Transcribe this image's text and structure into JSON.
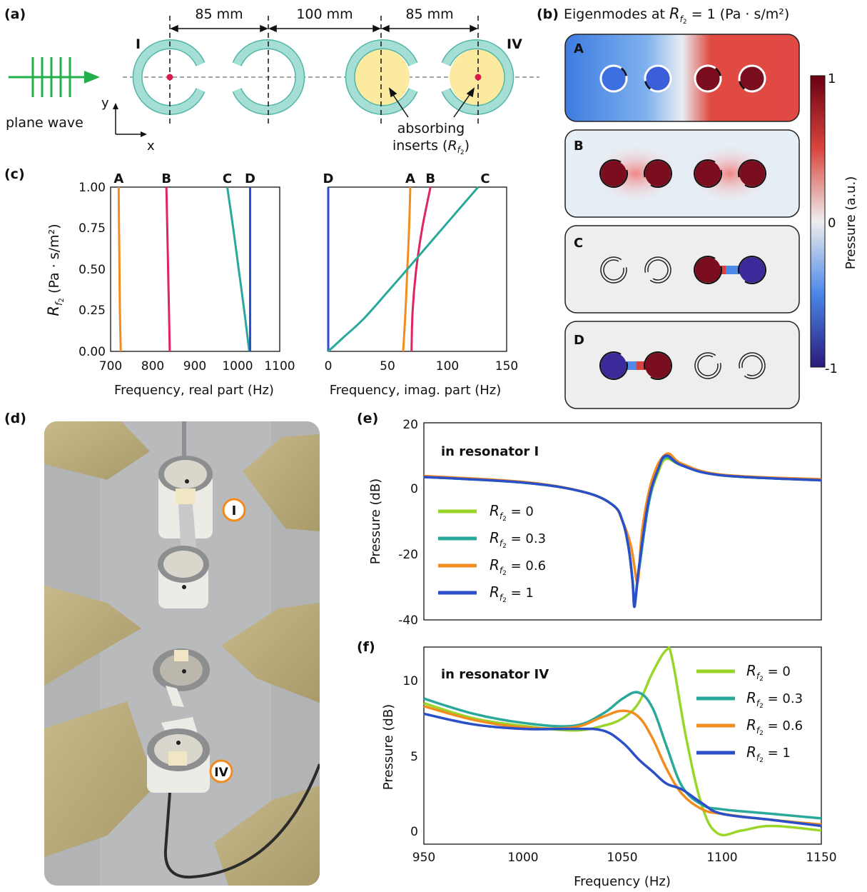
{
  "panel_labels": {
    "a": "(a)",
    "b": "(b)",
    "c": "(c)",
    "d": "(d)",
    "e": "(e)",
    "f": "(f)"
  },
  "panel_a": {
    "source_label": "plane wave",
    "axis_y": "y",
    "axis_x": "x",
    "resonator_I": "I",
    "resonator_IV": "IV",
    "distances": [
      "85 mm",
      "100 mm",
      "85 mm"
    ],
    "insert_label_line1": "absorbing",
    "insert_label_line2": "inserts (",
    "insert_label_var": "R",
    "insert_label_sub": "f2",
    "insert_label_end": ")",
    "colors": {
      "ring": "#9fdcd3",
      "ring_stroke": "#52b6a7",
      "insert": "#fbeaa0",
      "wave": "#22b04a",
      "mic": "#d81b4a"
    }
  },
  "panel_b": {
    "title_prefix": "Eigenmodes at ",
    "title_var": "R",
    "title_sub": "f2",
    "title_suffix": " = 1 (Pa · s/m²)",
    "modes": [
      "A",
      "B",
      "C",
      "D"
    ],
    "colorbar_max": "1",
    "colorbar_mid": "0",
    "colorbar_min": "-1",
    "colorbar_label": "Pressure (a.u.)"
  },
  "panel_c": {
    "ylabel_var": "R",
    "ylabel_sub": "f2",
    "ylabel_unit": "(Pa · s/m²)",
    "left_xlabel": "Frequency, real part (Hz)",
    "right_xlabel": "Frequency, imag. part (Hz)",
    "yticks": [
      "1.00",
      "0.75",
      "0.50",
      "0.25",
      "0.00"
    ],
    "left_xticks": [
      "700",
      "800",
      "900",
      "1000",
      "1100"
    ],
    "right_xticks": [
      "0",
      "50",
      "100",
      "150"
    ]
  },
  "panel_d": {
    "label_I": "I",
    "label_IV": "IV"
  },
  "panel_e": {
    "annotation": "in resonator I",
    "ylabel": "Pressure (dB)",
    "yticks": [
      "20",
      "0",
      "-20",
      "-40"
    ],
    "legend": [
      "= 0",
      "= 0.3",
      "= 0.6",
      "= 1"
    ],
    "legend_var": "R",
    "legend_sub": "f2"
  },
  "panel_f": {
    "annotation": "in resonator IV",
    "ylabel": "Pressure (dB)",
    "xlabel": "Frequency (Hz)",
    "yticks": [
      "10",
      "5",
      "0"
    ],
    "xticks": [
      "950",
      "1000",
      "1050",
      "1100",
      "1150"
    ],
    "legend": [
      "= 0",
      "= 0.3",
      "= 0.6",
      "= 1"
    ],
    "legend_var": "R",
    "legend_sub": "f2"
  },
  "chart_data": [
    {
      "type": "line",
      "panel": "c-left",
      "xlabel": "Frequency, real part (Hz)",
      "ylabel": "Rf2 (Pa · s/m²)",
      "xlim": [
        700,
        1100
      ],
      "ylim": [
        0,
        1
      ],
      "series": [
        {
          "name": "A",
          "color": "#f28c1e",
          "x": [
            724,
            722,
            721,
            720,
            719
          ],
          "y": [
            0,
            0.25,
            0.5,
            0.75,
            1
          ]
        },
        {
          "name": "B",
          "color": "#e0245e",
          "x": [
            840,
            838,
            836,
            834,
            832
          ],
          "y": [
            0,
            0.25,
            0.5,
            0.75,
            1
          ]
        },
        {
          "name": "C",
          "color": "#2aa89a",
          "x": [
            1028,
            1016,
            1003,
            990,
            976
          ],
          "y": [
            0,
            0.25,
            0.5,
            0.75,
            1
          ]
        },
        {
          "name": "D",
          "color": "#2a4fc9",
          "x": [
            1030,
            1030,
            1030,
            1030,
            1030
          ],
          "y": [
            0,
            0.25,
            0.5,
            0.75,
            1
          ]
        }
      ]
    },
    {
      "type": "line",
      "panel": "c-right",
      "xlabel": "Frequency, imag. part (Hz)",
      "ylabel": "Rf2 (Pa · s/m²)",
      "xlim": [
        0,
        150
      ],
      "ylim": [
        0,
        1
      ],
      "series": [
        {
          "name": "D",
          "color": "#2a4fc9",
          "x": [
            0,
            0,
            0,
            0,
            0
          ],
          "y": [
            0,
            0.25,
            0.5,
            0.75,
            1
          ]
        },
        {
          "name": "A",
          "color": "#f28c1e",
          "x": [
            63,
            65,
            66.5,
            68,
            69
          ],
          "y": [
            0,
            0.25,
            0.5,
            0.75,
            1
          ]
        },
        {
          "name": "B",
          "color": "#e0245e",
          "x": [
            70,
            71,
            74,
            79,
            86
          ],
          "y": [
            0,
            0.25,
            0.5,
            0.75,
            1
          ]
        },
        {
          "name": "C",
          "color": "#2aa89a",
          "x": [
            0,
            12,
            30,
            52,
            76,
            101,
            126
          ],
          "y": [
            0,
            0.08,
            0.2,
            0.38,
            0.58,
            0.79,
            1
          ]
        }
      ]
    },
    {
      "type": "line",
      "panel": "e",
      "xlabel": "",
      "ylabel": "Pressure (dB)",
      "xlim": [
        950,
        1150
      ],
      "ylim": [
        -40,
        20
      ],
      "series": [
        {
          "name": "Rf2 = 0",
          "color": "#9ad62a",
          "x": [
            950,
            1000,
            1030,
            1045,
            1050,
            1053,
            1055,
            1056,
            1058,
            1063,
            1068,
            1072,
            1080,
            1100,
            1150
          ],
          "y": [
            3.5,
            1.8,
            -1,
            -5,
            -10,
            -18,
            -28,
            -35,
            -26,
            -5,
            5,
            9,
            7,
            4,
            2.5
          ]
        },
        {
          "name": "Rf2 = 0.3",
          "color": "#2aa89a",
          "x": [
            950,
            1000,
            1030,
            1045,
            1050,
            1053,
            1055,
            1056,
            1058,
            1063,
            1068,
            1072,
            1080,
            1100,
            1150
          ],
          "y": [
            3.5,
            1.8,
            -1,
            -5,
            -10,
            -18,
            -28,
            -35,
            -26,
            -5,
            6,
            9.5,
            7,
            4,
            2.5
          ]
        },
        {
          "name": "Rf2 = 0.6",
          "color": "#f28c1e",
          "x": [
            950,
            1000,
            1030,
            1045,
            1050,
            1054,
            1056,
            1057,
            1058,
            1060,
            1065,
            1072,
            1080,
            1100,
            1150
          ],
          "y": [
            3.8,
            2,
            -1,
            -5,
            -10,
            -17,
            -24,
            -28,
            -27,
            -12,
            3,
            10.5,
            7.5,
            4.2,
            2.8
          ]
        },
        {
          "name": "Rf2 = 1",
          "color": "#2a4fc9",
          "x": [
            950,
            1000,
            1030,
            1045,
            1050,
            1053,
            1055,
            1056,
            1058,
            1063,
            1068,
            1072,
            1080,
            1100,
            1150
          ],
          "y": [
            3.5,
            1.8,
            -1,
            -5,
            -10,
            -18,
            -28,
            -36,
            -25,
            -4,
            6,
            10,
            7,
            4,
            2.5
          ]
        }
      ]
    },
    {
      "type": "line",
      "panel": "f",
      "xlabel": "Frequency (Hz)",
      "ylabel": "Pressure (dB)",
      "xlim": [
        950,
        1150
      ],
      "ylim": [
        -1,
        12
      ],
      "series": [
        {
          "name": "Rf2 = 0",
          "color": "#9ad62a",
          "x": [
            950,
            975,
            1000,
            1025,
            1040,
            1050,
            1058,
            1065,
            1072,
            1075,
            1082,
            1090,
            1098,
            1110,
            1125,
            1150
          ],
          "y": [
            8.3,
            7.3,
            6.8,
            6.5,
            6.8,
            7.3,
            8.3,
            10.3,
            11.8,
            11.2,
            6,
            1.5,
            -0.3,
            -0.1,
            0.2,
            -0.1
          ]
        },
        {
          "name": "Rf2 = 0.3",
          "color": "#2aa89a",
          "x": [
            950,
            975,
            1000,
            1025,
            1040,
            1050,
            1058,
            1065,
            1072,
            1080,
            1090,
            1100,
            1125,
            1150
          ],
          "y": [
            8.6,
            7.6,
            7.0,
            6.8,
            7.6,
            8.6,
            9.0,
            8.0,
            5.5,
            2.8,
            1.6,
            1.3,
            1.0,
            0.7
          ]
        },
        {
          "name": "Rf2 = 0.6",
          "color": "#f28c1e",
          "x": [
            950,
            975,
            1000,
            1025,
            1040,
            1050,
            1058,
            1065,
            1072,
            1080,
            1090,
            1100,
            1125,
            1150
          ],
          "y": [
            8.1,
            7.2,
            6.7,
            6.7,
            7.4,
            7.8,
            7.4,
            6.0,
            4.0,
            2.3,
            1.3,
            1.0,
            0.6,
            0.3
          ]
        },
        {
          "name": "Rf2 = 1",
          "color": "#2a4fc9",
          "x": [
            950,
            975,
            1000,
            1025,
            1040,
            1050,
            1058,
            1065,
            1072,
            1080,
            1090,
            1100,
            1125,
            1150
          ],
          "y": [
            7.6,
            6.9,
            6.6,
            6.6,
            6.5,
            5.7,
            4.6,
            3.8,
            3.0,
            2.6,
            1.7,
            1.0,
            0.6,
            0.2
          ]
        }
      ]
    }
  ]
}
